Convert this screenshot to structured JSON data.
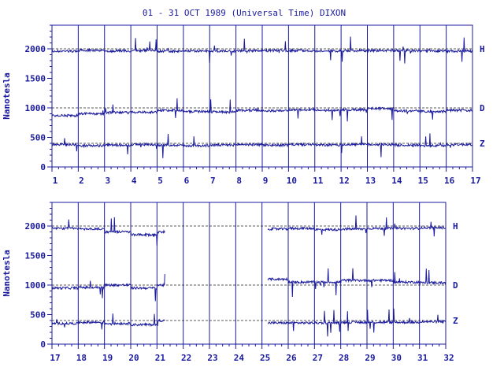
{
  "chart_data": {
    "type": "line",
    "title": "01 - 31 OCT 1989 (Universal Time) DIXON",
    "ylabel": "Nanotesla",
    "ylim": [
      0,
      2400
    ],
    "y_ticks": [
      "0",
      "500",
      "1000",
      "1500",
      "2000"
    ],
    "y_tick_values": [
      0,
      500,
      1000,
      1500,
      2000
    ],
    "series_labels": [
      "H",
      "D",
      "Z"
    ],
    "baselines": {
      "H": 2000,
      "D": 1000,
      "Z": 400
    },
    "color": "#1a1a9c",
    "grid": "vertical day lines + dashed baselines",
    "panels": [
      {
        "name": "top",
        "xlim": [
          1,
          17
        ],
        "x_ticks": [
          "1",
          "2",
          "3",
          "4",
          "5",
          "6",
          "7",
          "8",
          "9",
          "10",
          "11",
          "12",
          "13",
          "14",
          "15",
          "16",
          "17"
        ],
        "data_gaps": [],
        "series": [
          {
            "name": "H",
            "day_values": [
              1960,
              1975,
              1965,
              1970,
              1960,
              1965,
              1960,
              1965,
              1970,
              1970,
              1965,
              1970,
              1970,
              1970,
              1965,
              1960
            ]
          },
          {
            "name": "D",
            "day_values": [
              870,
              900,
              920,
              930,
              960,
              940,
              930,
              960,
              950,
              970,
              960,
              970,
              990,
              950,
              940,
              960
            ]
          },
          {
            "name": "Z",
            "day_values": [
              380,
              360,
              370,
              380,
              370,
              360,
              370,
              380,
              370,
              380,
              370,
              380,
              380,
              370,
              360,
              380
            ]
          }
        ]
      },
      {
        "name": "bottom",
        "xlim": [
          17,
          32
        ],
        "x_ticks": [
          "17",
          "18",
          "19",
          "20",
          "21",
          "22",
          "23",
          "24",
          "25",
          "26",
          "27",
          "28",
          "29",
          "30",
          "31",
          "32"
        ],
        "data_gaps": [
          [
            21.3,
            25.2
          ]
        ],
        "series": [
          {
            "name": "H",
            "day_values": [
              1960,
              1950,
              1900,
              1850,
              1900,
              null,
              null,
              null,
              1950,
              1960,
              1940,
              1950,
              1960,
              1960,
              1970
            ]
          },
          {
            "name": "D",
            "day_values": [
              950,
              960,
              1000,
              950,
              1000,
              null,
              null,
              null,
              1100,
              1050,
              1050,
              1080,
              1080,
              1050,
              1040
            ]
          },
          {
            "name": "Z",
            "day_values": [
              350,
              370,
              350,
              330,
              400,
              null,
              null,
              null,
              360,
              360,
              360,
              370,
              370,
              370,
              380
            ]
          }
        ]
      }
    ]
  }
}
